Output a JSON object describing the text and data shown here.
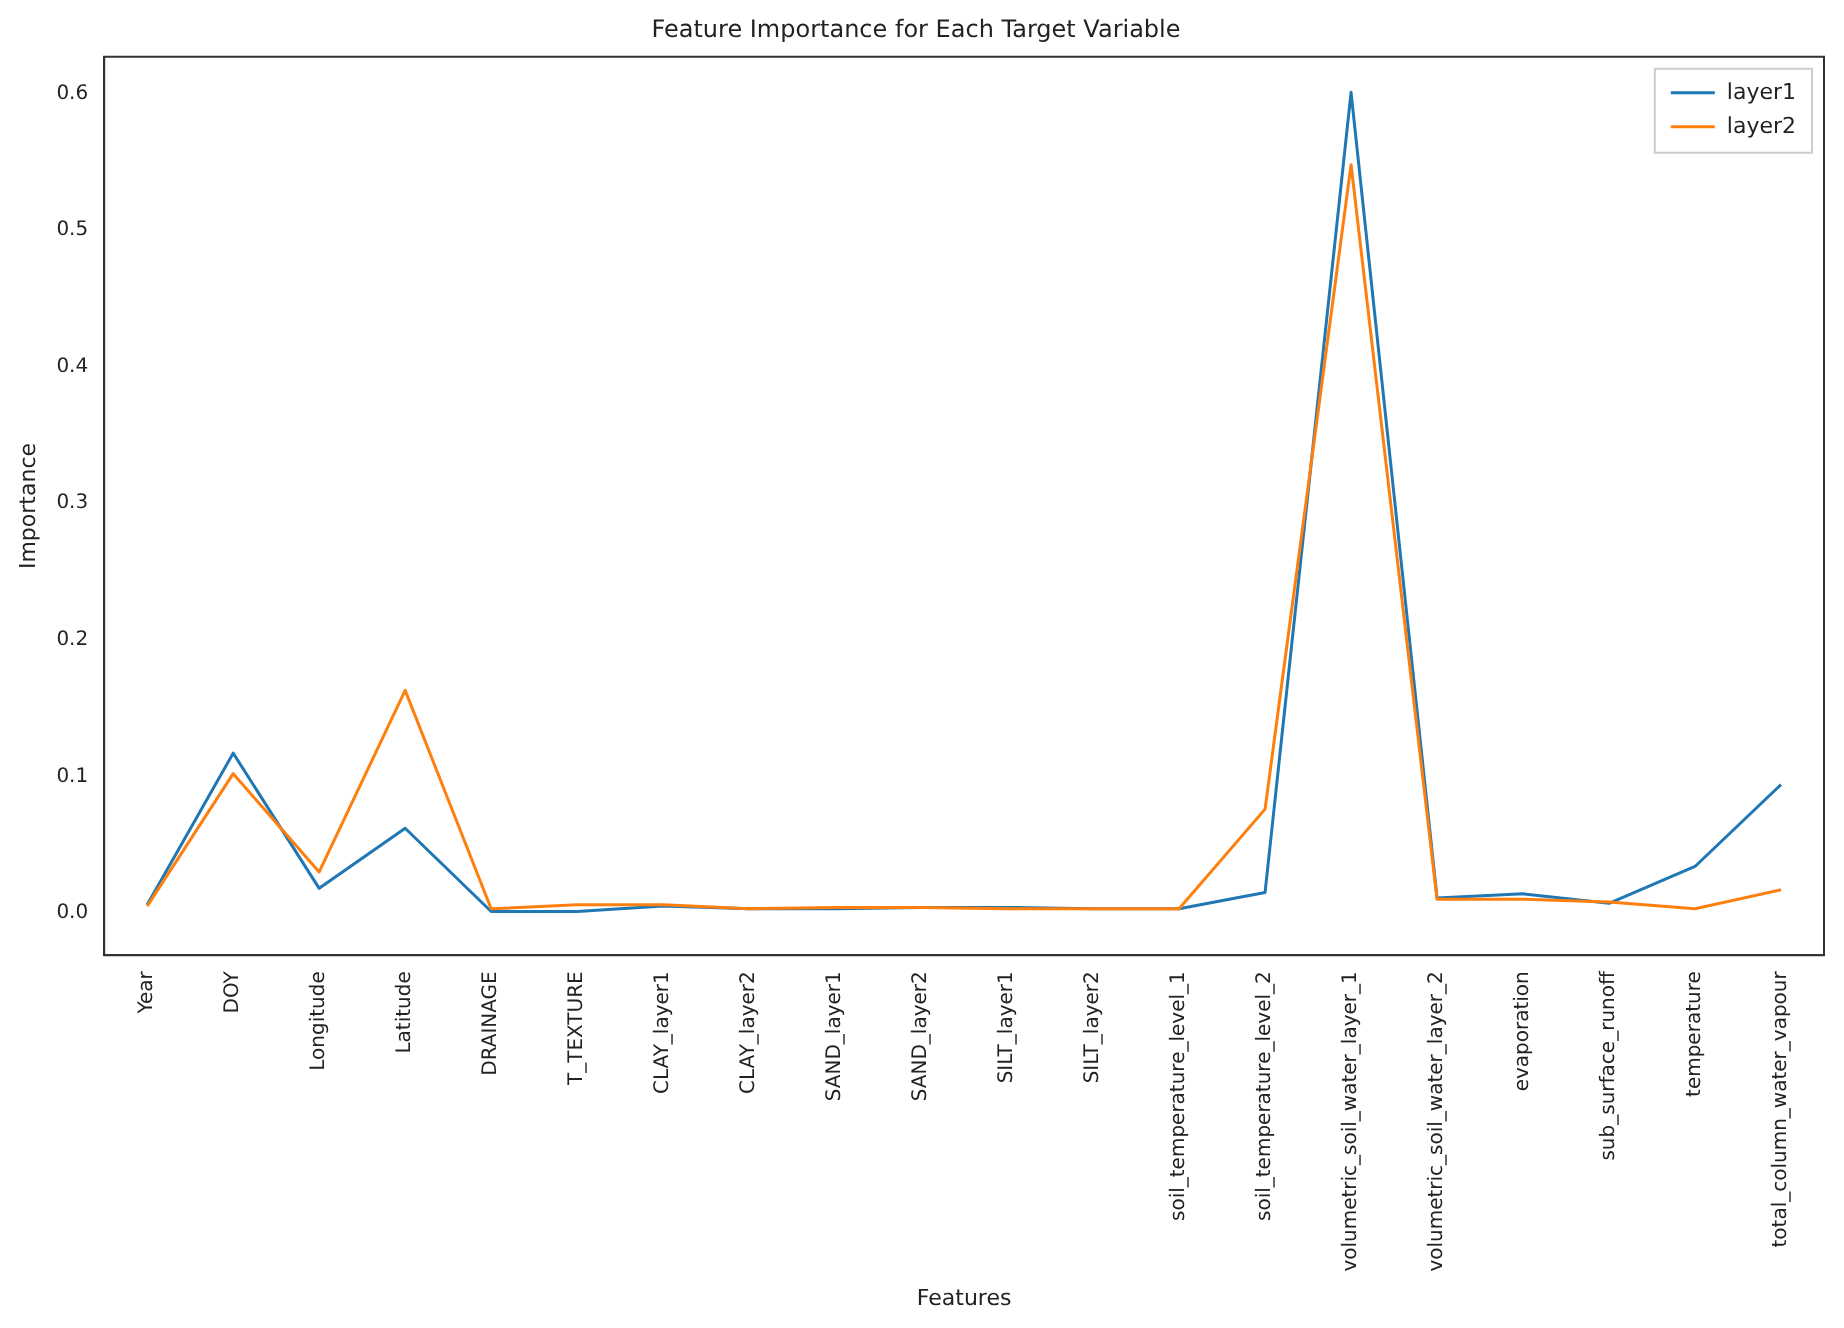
{
  "chart_data": {
    "type": "line",
    "title": "Feature Importance for Each Target Variable",
    "xlabel": "Features",
    "ylabel": "Importance",
    "categories": [
      "Year",
      "DOY",
      "Longitude",
      "Latitude",
      "DRAINAGE",
      "T_TEXTURE",
      "CLAY_layer1",
      "CLAY_layer2",
      "SAND_layer1",
      "SAND_layer2",
      "SILT_layer1",
      "SILT_layer2",
      "soil_temperature_level_1",
      "soil_temperature_level_2",
      "volumetric_soil_water_layer_1",
      "volumetric_soil_water_layer_2",
      "evaporation",
      "sub_surface_runoff",
      "temperature",
      "total_column_water_vapour"
    ],
    "series": [
      {
        "name": "layer1",
        "color": "#1f77b4",
        "values": [
          0.006,
          0.117,
          0.018,
          0.062,
          0.001,
          0.001,
          0.005,
          0.003,
          0.003,
          0.004,
          0.004,
          0.003,
          0.003,
          0.015,
          0.601,
          0.011,
          0.014,
          0.007,
          0.034,
          0.094
        ]
      },
      {
        "name": "layer2",
        "color": "#ff7f0e",
        "values": [
          0.005,
          0.102,
          0.03,
          0.163,
          0.003,
          0.006,
          0.006,
          0.003,
          0.004,
          0.004,
          0.003,
          0.003,
          0.003,
          0.076,
          0.548,
          0.01,
          0.01,
          0.008,
          0.003,
          0.017
        ]
      }
    ],
    "ylim": [
      -0.031,
      0.627
    ],
    "yticks": [
      {
        "value": 0,
        "label": "0.0"
      },
      0.1,
      0.2,
      0.3,
      0.4,
      0.5,
      0.6
    ],
    "grid": false,
    "legend": "top right",
    "marker": "none",
    "line_style": "solid"
  }
}
